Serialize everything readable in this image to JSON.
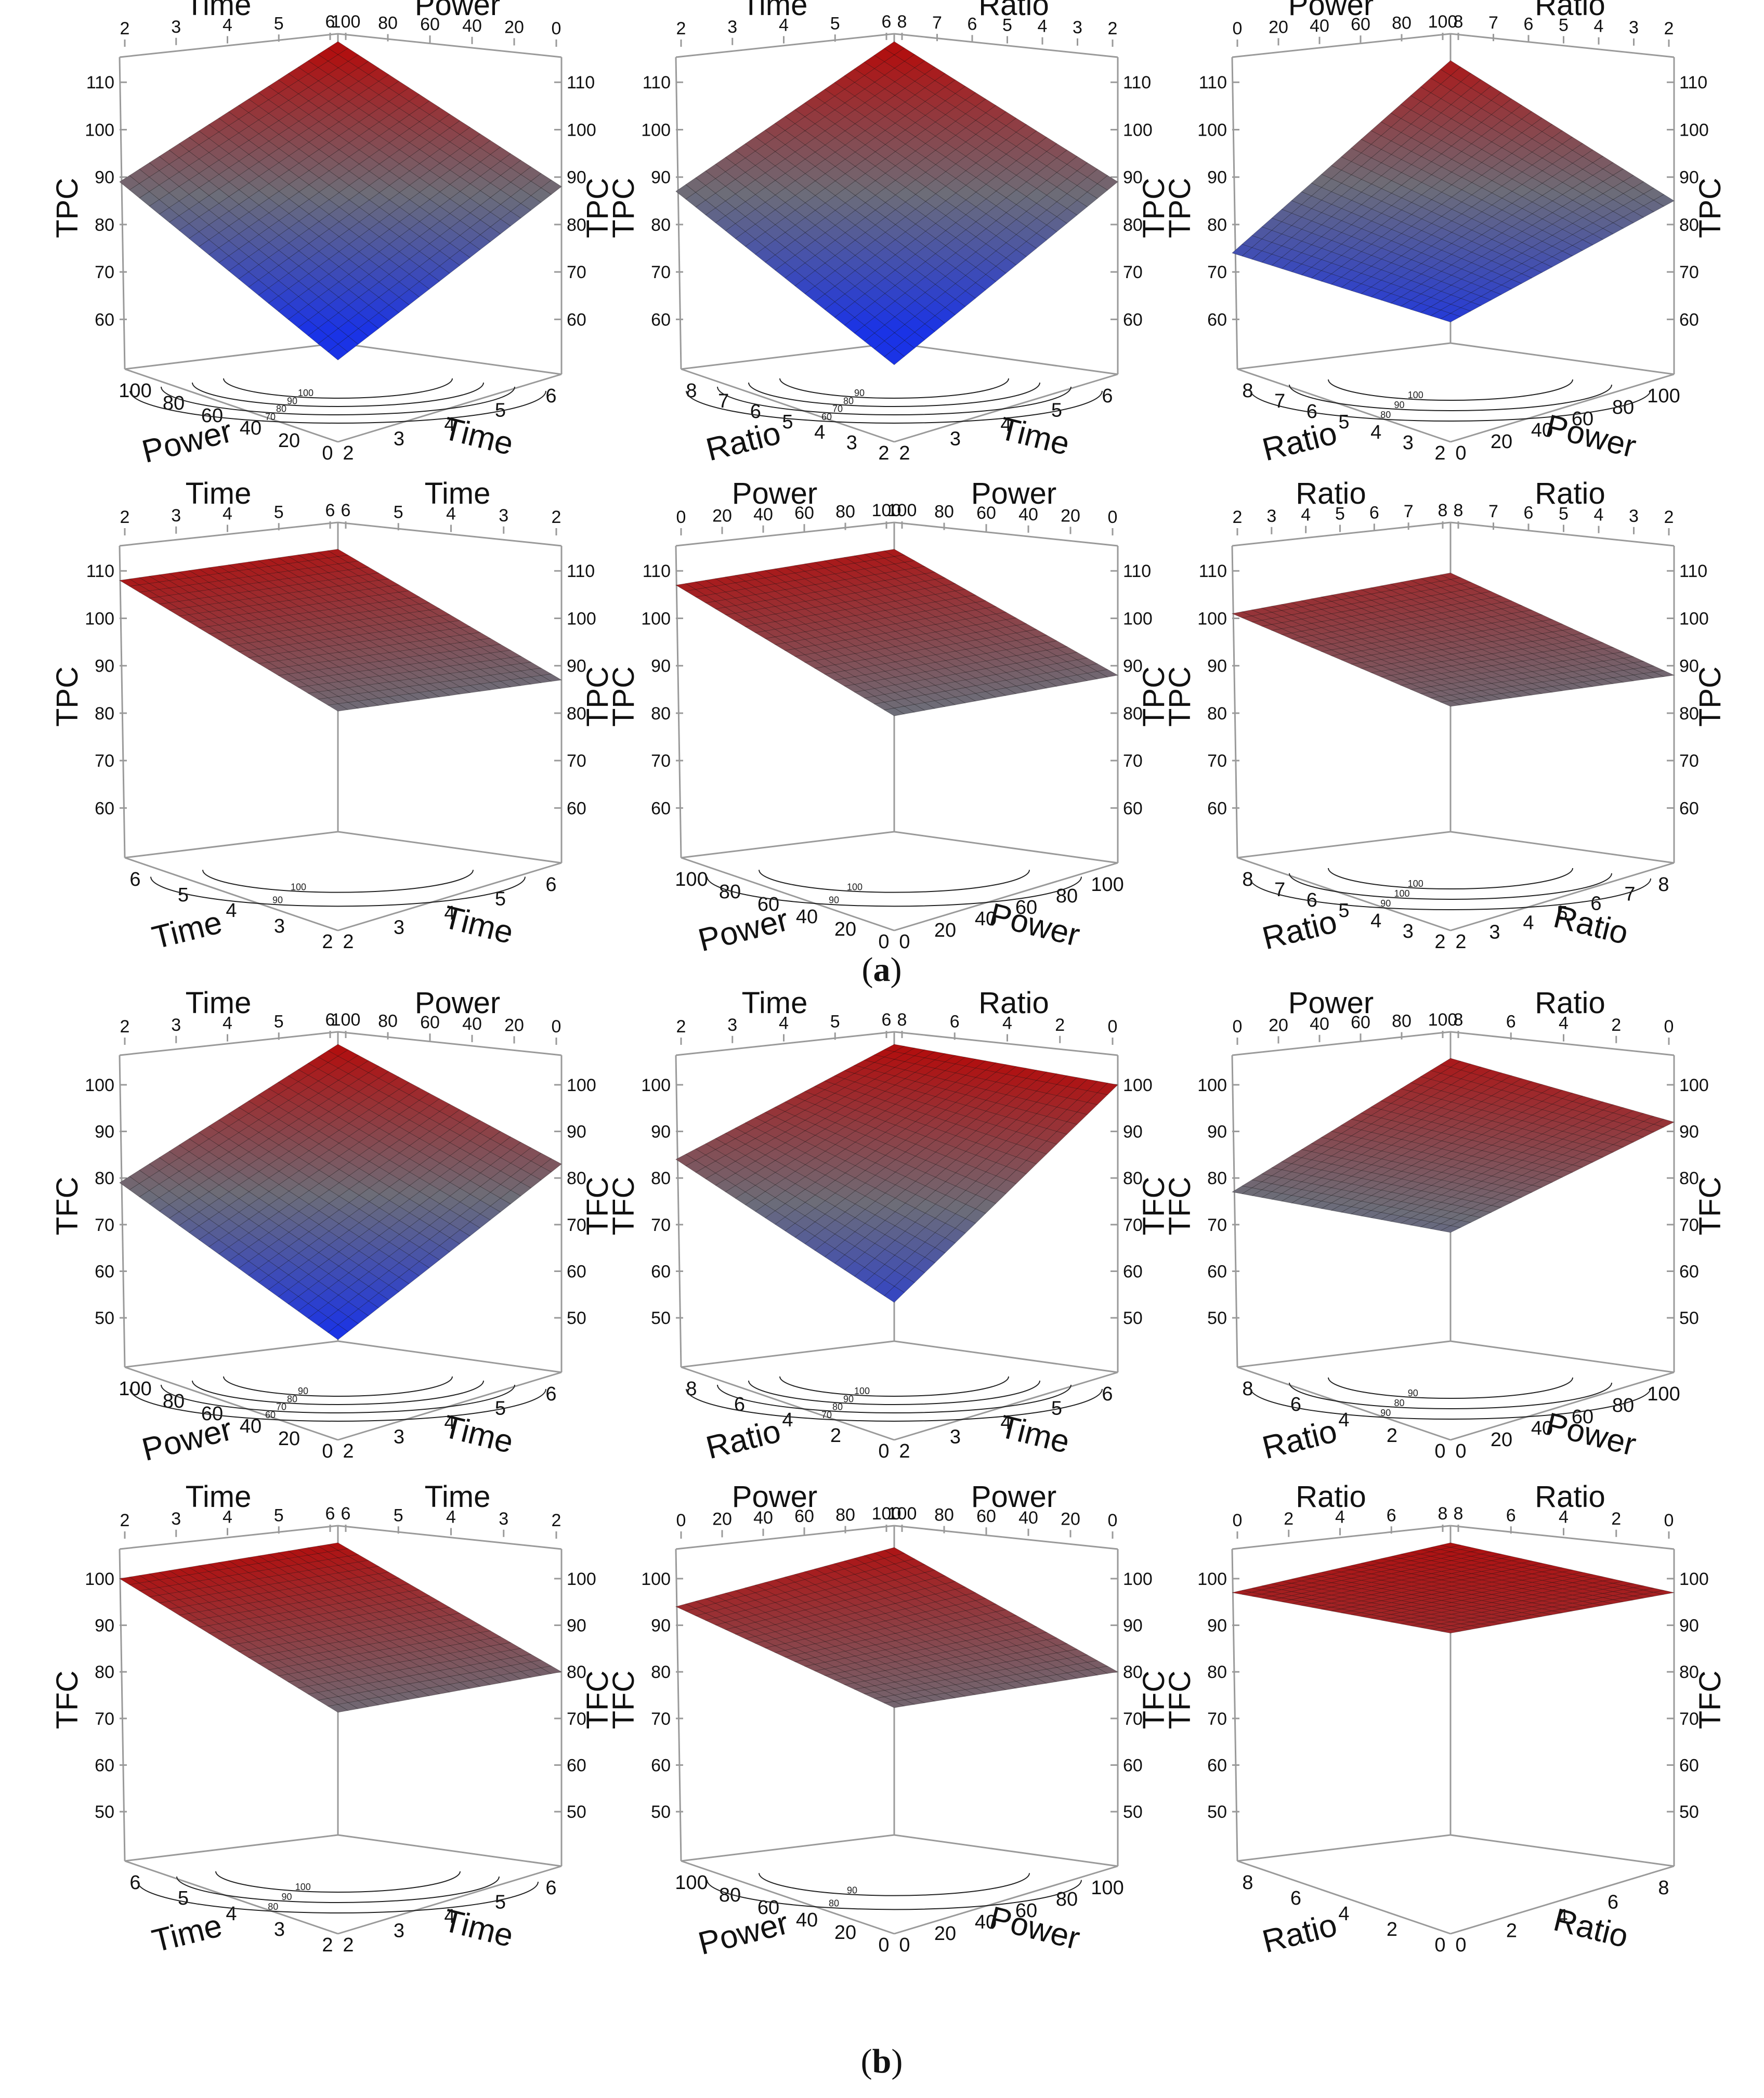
{
  "figure": {
    "caption_a": {
      "open": "(",
      "letter": "a",
      "close": ")"
    },
    "caption_b": {
      "open": "(",
      "letter": "b",
      "close": ")"
    }
  },
  "colors": {
    "high": "#b01010",
    "mid": "#6d6d78",
    "low": "#1a33e6",
    "axis": "#9a9a9a"
  },
  "chart_data": [
    {
      "id": "a1",
      "type": "surface3d",
      "group": "a",
      "response": "TPC",
      "top_left_label": "Time",
      "top_right_label": "Power",
      "top_left_ticks": [
        "2",
        "3",
        "4",
        "5",
        "6"
      ],
      "top_right_ticks": [
        "100",
        "80",
        "60",
        "40",
        "20",
        "0"
      ],
      "z_ticks_left": [
        "60",
        "70",
        "80",
        "90",
        "100",
        "110"
      ],
      "z_ticks_right": [
        "60",
        "70",
        "80",
        "90",
        "100",
        "110"
      ],
      "zlim": [
        55,
        112
      ],
      "base_left_label": "Power",
      "base_right_label": "Time",
      "base_left_ticks": [
        "100",
        "80",
        "60",
        "40",
        "20",
        "0"
      ],
      "base_right_ticks": [
        "2",
        "3",
        "4",
        "5",
        "6"
      ],
      "contour_labels": [
        "100",
        "90",
        "80",
        "70"
      ],
      "surface_corners": [
        89,
        112,
        88,
        58
      ]
    },
    {
      "id": "a2",
      "type": "surface3d",
      "group": "a",
      "response": "TPC",
      "top_left_label": "Time",
      "top_right_label": "Ratio",
      "top_left_ticks": [
        "2",
        "3",
        "4",
        "5",
        "6"
      ],
      "top_right_ticks": [
        "8",
        "7",
        "6",
        "5",
        "4",
        "3",
        "2"
      ],
      "z_ticks_left": [
        "60",
        "70",
        "80",
        "90",
        "100",
        "110"
      ],
      "z_ticks_right": [
        "60",
        "70",
        "80",
        "90",
        "100",
        "110"
      ],
      "zlim": [
        55,
        112
      ],
      "base_left_label": "Ratio",
      "base_right_label": "Time",
      "base_left_ticks": [
        "8",
        "7",
        "6",
        "5",
        "4",
        "3",
        "2"
      ],
      "base_right_ticks": [
        "2",
        "3",
        "4",
        "5",
        "6"
      ],
      "contour_labels": [
        "90",
        "80",
        "70",
        "60"
      ],
      "surface_corners": [
        87,
        112,
        89,
        57
      ]
    },
    {
      "id": "a3",
      "type": "surface3d",
      "group": "a",
      "response": "TPC",
      "top_left_label": "Power",
      "top_right_label": "Ratio",
      "top_left_ticks": [
        "0",
        "20",
        "40",
        "60",
        "80",
        "100"
      ],
      "top_right_ticks": [
        "8",
        "7",
        "6",
        "5",
        "4",
        "3",
        "2"
      ],
      "z_ticks_left": [
        "60",
        "70",
        "80",
        "90",
        "100",
        "110"
      ],
      "z_ticks_right": [
        "60",
        "70",
        "80",
        "90",
        "100",
        "110"
      ],
      "zlim": [
        55,
        112
      ],
      "base_left_label": "Ratio",
      "base_right_label": "Power",
      "base_left_ticks": [
        "8",
        "7",
        "6",
        "5",
        "4",
        "3",
        "2"
      ],
      "base_right_ticks": [
        "0",
        "20",
        "40",
        "60",
        "80",
        "100"
      ],
      "contour_labels": [
        "100",
        "90",
        "80"
      ],
      "surface_corners": [
        74,
        108,
        85,
        66
      ]
    },
    {
      "id": "a4",
      "type": "surface3d",
      "group": "a",
      "response": "TPC",
      "top_left_label": "Time",
      "top_right_label": "Time",
      "top_left_ticks": [
        "2",
        "3",
        "4",
        "5",
        "6"
      ],
      "top_right_ticks": [
        "6",
        "5",
        "4",
        "3",
        "2"
      ],
      "z_ticks_left": [
        "60",
        "70",
        "80",
        "90",
        "100",
        "110"
      ],
      "z_ticks_right": [
        "60",
        "70",
        "80",
        "90",
        "100",
        "110"
      ],
      "zlim": [
        55,
        112
      ],
      "base_left_label": "Time",
      "base_right_label": "Time",
      "base_left_ticks": [
        "6",
        "5",
        "4",
        "3",
        "2"
      ],
      "base_right_ticks": [
        "2",
        "3",
        "4",
        "5",
        "6"
      ],
      "contour_labels": [
        "100",
        "90"
      ],
      "surface_corners": [
        108,
        108,
        87,
        87
      ]
    },
    {
      "id": "a5",
      "type": "surface3d",
      "group": "a",
      "response": "TPC",
      "top_left_label": "Power",
      "top_right_label": "Power",
      "top_left_ticks": [
        "0",
        "20",
        "40",
        "60",
        "80",
        "100"
      ],
      "top_right_ticks": [
        "100",
        "80",
        "60",
        "40",
        "20",
        "0"
      ],
      "z_ticks_left": [
        "60",
        "70",
        "80",
        "90",
        "100",
        "110"
      ],
      "z_ticks_right": [
        "60",
        "70",
        "80",
        "90",
        "100",
        "110"
      ],
      "zlim": [
        55,
        112
      ],
      "base_left_label": "Power",
      "base_right_label": "Power",
      "base_left_ticks": [
        "100",
        "80",
        "60",
        "40",
        "20",
        "0"
      ],
      "base_right_ticks": [
        "0",
        "20",
        "40",
        "60",
        "80",
        "100"
      ],
      "contour_labels": [
        "100",
        "90"
      ],
      "surface_corners": [
        107,
        108,
        88,
        86
      ]
    },
    {
      "id": "a6",
      "type": "surface3d",
      "group": "a",
      "response": "TPC",
      "top_left_label": "Ratio",
      "top_right_label": "Ratio",
      "top_left_ticks": [
        "2",
        "3",
        "4",
        "5",
        "6",
        "7",
        "8"
      ],
      "top_right_ticks": [
        "8",
        "7",
        "6",
        "5",
        "4",
        "3",
        "2"
      ],
      "z_ticks_left": [
        "60",
        "70",
        "80",
        "90",
        "100",
        "110"
      ],
      "z_ticks_right": [
        "60",
        "70",
        "80",
        "90",
        "100",
        "110"
      ],
      "zlim": [
        55,
        112
      ],
      "base_left_label": "Ratio",
      "base_right_label": "Ratio",
      "base_left_ticks": [
        "8",
        "7",
        "6",
        "5",
        "4",
        "3",
        "2"
      ],
      "base_right_ticks": [
        "2",
        "3",
        "4",
        "5",
        "6",
        "7",
        "8"
      ],
      "contour_labels": [
        "100",
        "100",
        "90"
      ],
      "surface_corners": [
        101,
        103,
        88,
        88
      ]
    },
    {
      "id": "b1",
      "type": "surface3d",
      "group": "b",
      "response": "TFC",
      "top_left_label": "Time",
      "top_right_label": "Power",
      "top_left_ticks": [
        "2",
        "3",
        "4",
        "5",
        "6"
      ],
      "top_right_ticks": [
        "100",
        "80",
        "60",
        "40",
        "20",
        "0"
      ],
      "z_ticks_left": [
        "50",
        "60",
        "70",
        "80",
        "90",
        "100"
      ],
      "z_ticks_right": [
        "50",
        "60",
        "70",
        "80",
        "90",
        "100"
      ],
      "zlim": [
        45,
        103
      ],
      "base_left_label": "Power",
      "base_right_label": "Time",
      "base_left_ticks": [
        "100",
        "80",
        "60",
        "40",
        "20",
        "0"
      ],
      "base_right_ticks": [
        "2",
        "3",
        "4",
        "5",
        "6"
      ],
      "contour_labels": [
        "90",
        "80",
        "70",
        "60"
      ],
      "surface_corners": [
        79,
        102,
        83,
        52
      ]
    },
    {
      "id": "b2",
      "type": "surface3d",
      "group": "b",
      "response": "TFC",
      "top_left_label": "Time",
      "top_right_label": "Ratio",
      "top_left_ticks": [
        "2",
        "3",
        "4",
        "5",
        "6"
      ],
      "top_right_ticks": [
        "8",
        "6",
        "4",
        "2",
        "0"
      ],
      "z_ticks_left": [
        "50",
        "60",
        "70",
        "80",
        "90",
        "100"
      ],
      "z_ticks_right": [
        "50",
        "60",
        "70",
        "80",
        "90",
        "100"
      ],
      "zlim": [
        45,
        103
      ],
      "base_left_label": "Ratio",
      "base_right_label": "Time",
      "base_left_ticks": [
        "8",
        "6",
        "4",
        "2",
        "0"
      ],
      "base_right_ticks": [
        "2",
        "3",
        "4",
        "5",
        "6"
      ],
      "contour_labels": [
        "100",
        "90",
        "80",
        "70"
      ],
      "surface_corners": [
        84,
        102,
        100,
        60
      ]
    },
    {
      "id": "b3",
      "type": "surface3d",
      "group": "b",
      "response": "TFC",
      "top_left_label": "Power",
      "top_right_label": "Ratio",
      "top_left_ticks": [
        "0",
        "20",
        "40",
        "60",
        "80",
        "100"
      ],
      "top_right_ticks": [
        "8",
        "6",
        "4",
        "2",
        "0"
      ],
      "z_ticks_left": [
        "50",
        "60",
        "70",
        "80",
        "90",
        "100"
      ],
      "z_ticks_right": [
        "50",
        "60",
        "70",
        "80",
        "90",
        "100"
      ],
      "zlim": [
        45,
        103
      ],
      "base_left_label": "Ratio",
      "base_right_label": "Power",
      "base_left_ticks": [
        "8",
        "6",
        "4",
        "2",
        "0"
      ],
      "base_right_ticks": [
        "0",
        "20",
        "40",
        "60",
        "80",
        "100"
      ],
      "contour_labels": [
        "90",
        "80",
        "90"
      ],
      "surface_corners": [
        77,
        99,
        92,
        75
      ]
    },
    {
      "id": "b4",
      "type": "surface3d",
      "group": "b",
      "response": "TFC",
      "top_left_label": "Time",
      "top_right_label": "Time",
      "top_left_ticks": [
        "2",
        "3",
        "4",
        "5",
        "6"
      ],
      "top_right_ticks": [
        "6",
        "5",
        "4",
        "3",
        "2"
      ],
      "z_ticks_left": [
        "50",
        "60",
        "70",
        "80",
        "90",
        "100"
      ],
      "z_ticks_right": [
        "50",
        "60",
        "70",
        "80",
        "90",
        "100"
      ],
      "zlim": [
        45,
        103
      ],
      "base_left_label": "Time",
      "base_right_label": "Time",
      "base_left_ticks": [
        "6",
        "5",
        "4",
        "3",
        "2"
      ],
      "base_right_ticks": [
        "2",
        "3",
        "4",
        "5",
        "6"
      ],
      "contour_labels": [
        "100",
        "90",
        "80"
      ],
      "surface_corners": [
        100,
        101,
        80,
        78
      ]
    },
    {
      "id": "b5",
      "type": "surface3d",
      "group": "b",
      "response": "TFC",
      "top_left_label": "Power",
      "top_right_label": "Power",
      "top_left_ticks": [
        "0",
        "20",
        "40",
        "60",
        "80",
        "100"
      ],
      "top_right_ticks": [
        "100",
        "80",
        "60",
        "40",
        "20",
        "0"
      ],
      "z_ticks_left": [
        "50",
        "60",
        "70",
        "80",
        "90",
        "100"
      ],
      "z_ticks_right": [
        "50",
        "60",
        "70",
        "80",
        "90",
        "100"
      ],
      "zlim": [
        45,
        103
      ],
      "base_left_label": "Power",
      "base_right_label": "Power",
      "base_left_ticks": [
        "100",
        "80",
        "60",
        "40",
        "20",
        "0"
      ],
      "base_right_ticks": [
        "0",
        "20",
        "40",
        "60",
        "80",
        "100"
      ],
      "contour_labels": [
        "90",
        "80"
      ],
      "surface_corners": [
        94,
        100,
        80,
        79
      ]
    },
    {
      "id": "b6",
      "type": "surface3d",
      "group": "b",
      "response": "TFC",
      "top_left_label": "Ratio",
      "top_right_label": "Ratio",
      "top_left_ticks": [
        "0",
        "2",
        "4",
        "6",
        "8"
      ],
      "top_right_ticks": [
        "8",
        "6",
        "4",
        "2",
        "0"
      ],
      "z_ticks_left": [
        "50",
        "60",
        "70",
        "80",
        "90",
        "100"
      ],
      "z_ticks_right": [
        "50",
        "60",
        "70",
        "80",
        "90",
        "100"
      ],
      "zlim": [
        45,
        103
      ],
      "base_left_label": "Ratio",
      "base_right_label": "Ratio",
      "base_left_ticks": [
        "8",
        "6",
        "4",
        "2",
        "0"
      ],
      "base_right_ticks": [
        "0",
        "2",
        "4",
        "6",
        "8"
      ],
      "contour_labels": [],
      "surface_corners": [
        97,
        101,
        97,
        95
      ]
    }
  ]
}
